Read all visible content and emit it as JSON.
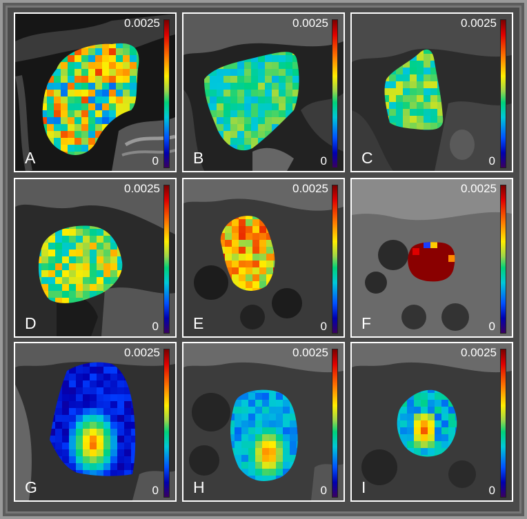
{
  "panels": [
    {
      "id": "A",
      "letter": "A",
      "max_label": "0.0025",
      "min_label": "0"
    },
    {
      "id": "B",
      "letter": "B",
      "max_label": "0.0025",
      "min_label": "0"
    },
    {
      "id": "C",
      "letter": "C",
      "max_label": "0.0025",
      "min_label": "0"
    },
    {
      "id": "D",
      "letter": "D",
      "max_label": "0.0025",
      "min_label": "0"
    },
    {
      "id": "E",
      "letter": "E",
      "max_label": "0.0025",
      "min_label": "0"
    },
    {
      "id": "F",
      "letter": "F",
      "max_label": "0.0025",
      "min_label": "0"
    },
    {
      "id": "G",
      "letter": "G",
      "max_label": "0.0025",
      "min_label": "0"
    },
    {
      "id": "H",
      "letter": "H",
      "max_label": "0.0025",
      "min_label": "0"
    },
    {
      "id": "I",
      "letter": "I",
      "max_label": "0.0025",
      "min_label": "0"
    }
  ]
}
